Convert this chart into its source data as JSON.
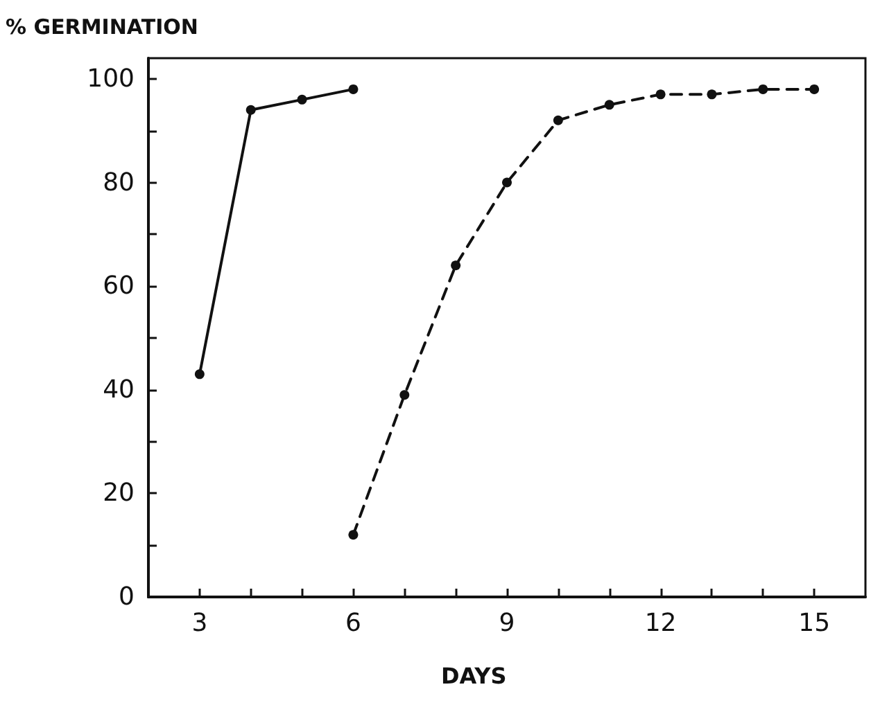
{
  "chart_data": {
    "type": "line",
    "ylabel": "% GERMINATION",
    "xlabel": "DAYS",
    "xlim": [
      2,
      16
    ],
    "xticks": [
      3,
      {
        "value": 4,
        "label": null
      },
      {
        "value": 5,
        "label": null
      },
      6,
      {
        "value": 7,
        "label": null
      },
      {
        "value": 8,
        "label": null
      },
      9,
      {
        "value": 10,
        "label": null
      },
      {
        "value": 11,
        "label": null
      },
      12,
      {
        "value": 13,
        "label": null
      },
      {
        "value": 14,
        "label": null
      },
      15
    ],
    "ylim": [
      0,
      104
    ],
    "yticks": [
      0,
      {
        "value": 10,
        "label": null
      },
      20,
      {
        "value": 30,
        "label": null
      },
      40,
      {
        "value": 50,
        "label": null
      },
      60,
      {
        "value": 70,
        "label": null
      },
      80,
      {
        "value": 90,
        "label": null
      },
      100
    ],
    "grid": false,
    "marker": "circle",
    "series": [
      {
        "color": "#111111",
        "line_style": "solid",
        "x": [
          3,
          4,
          5,
          6
        ],
        "values": [
          43,
          94,
          96,
          98
        ]
      },
      {
        "color": "#111111",
        "line_style": "dashed",
        "x": [
          6,
          7,
          8,
          9,
          10,
          11,
          12,
          13,
          14,
          15
        ],
        "values": [
          12,
          39,
          64,
          80,
          92,
          95,
          97,
          97,
          98,
          98
        ]
      }
    ]
  }
}
